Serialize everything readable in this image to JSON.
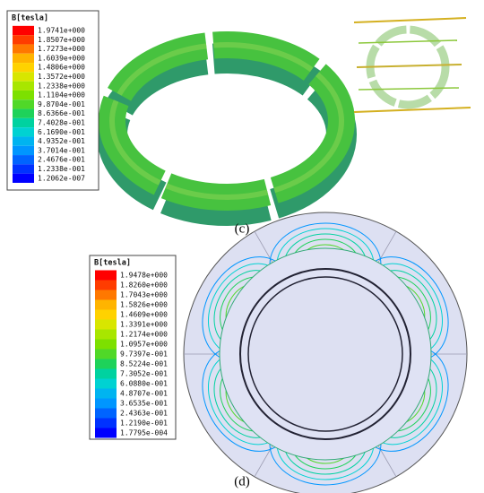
{
  "legend_colors": [
    "#ff0000",
    "#ff3c00",
    "#ff7800",
    "#ffb400",
    "#ffd200",
    "#d8e600",
    "#a8e600",
    "#7de000",
    "#50d828",
    "#1ed25a",
    "#00d2a0",
    "#00d2d2",
    "#00b4f0",
    "#0096ff",
    "#0064ff",
    "#0032ff",
    "#0000ff"
  ],
  "panel_c": {
    "legend_title": "B[tesla]",
    "caption": "(c)",
    "legend_labels": [
      "1.9741e+000",
      "1.8507e+000",
      "1.7273e+000",
      "1.6039e+000",
      "1.4806e+000",
      "1.3572e+000",
      "1.2338e+000",
      "1.1104e+000",
      "9.8704e-001",
      "8.6366e-001",
      "7.4028e-001",
      "6.1690e-001",
      "4.9352e-001",
      "3.7014e-001",
      "2.4676e-001",
      "1.2338e-001",
      "1.2062e-007"
    ]
  },
  "panel_d": {
    "legend_title": "B[tesla]",
    "caption": "(d)",
    "legend_labels": [
      "1.9478e+000",
      "1.8260e+000",
      "1.7043e+000",
      "1.5826e+000",
      "1.4609e+000",
      "1.3391e+000",
      "1.2174e+000",
      "1.0957e+000",
      "9.7397e-001",
      "8.5224e-001",
      "7.3052e-001",
      "6.0880e-001",
      "4.8707e-001",
      "3.6535e-001",
      "2.4363e-001",
      "1.2190e-001",
      "1.7795e-004"
    ]
  }
}
